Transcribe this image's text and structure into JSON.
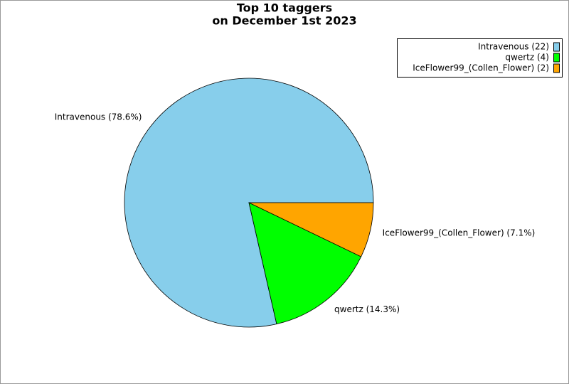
{
  "chart_data": {
    "type": "pie",
    "title": "Top 10 taggers",
    "subtitle": "on December 1st 2023",
    "values": [
      22,
      4,
      2
    ],
    "colors": [
      "#87ceeb",
      "#00ff00",
      "#ffa500"
    ],
    "slice_labels": [
      "Intravenous (78.6%)",
      "qwertz (14.3%)",
      "IceFlower99_(Collen_Flower) (7.1%)"
    ],
    "legend_labels": [
      "Intravenous (22)",
      "qwertz (4)",
      "IceFlower99_(Collen_Flower) (2)"
    ],
    "legend_position": "upper right"
  }
}
